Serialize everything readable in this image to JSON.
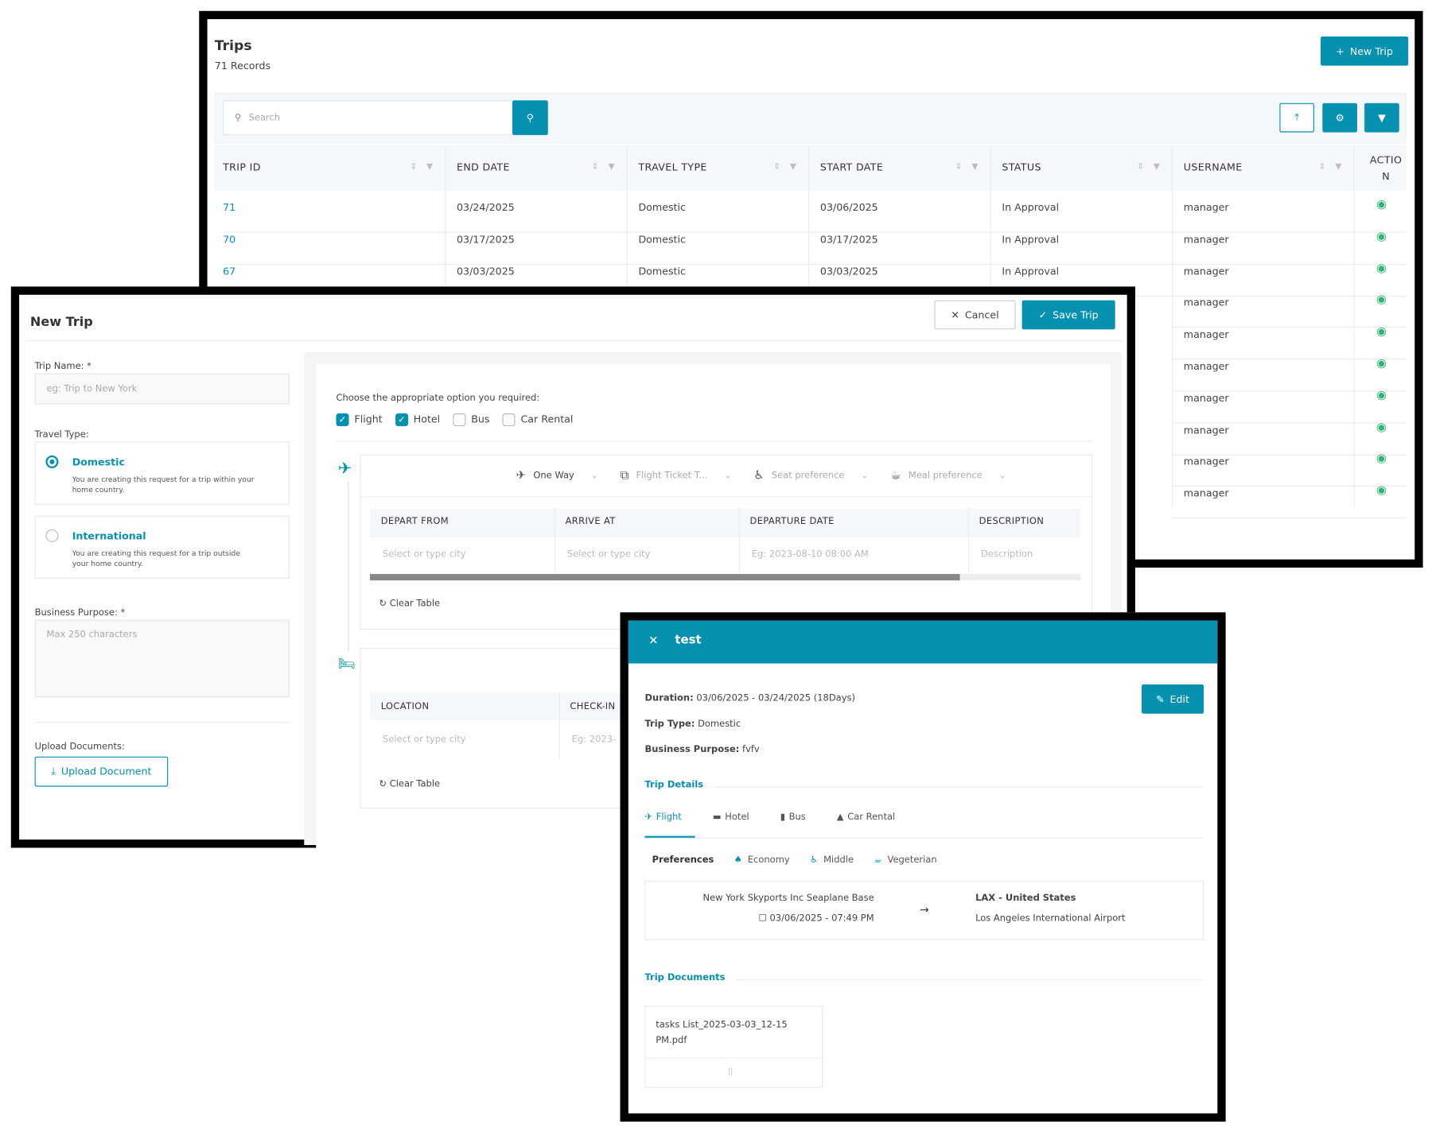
{
  "trips": {
    "title": "Trips",
    "records": "71 Records",
    "new_trip": "New Trip",
    "search_placeholder": "Search",
    "columns": [
      "TRIP ID",
      "END DATE",
      "TRAVEL TYPE",
      "START DATE",
      "STATUS",
      "USERNAME",
      "ACTIO N"
    ],
    "rows": [
      {
        "id": "71",
        "end": "03/24/2025",
        "type": "Domestic",
        "start": "03/06/2025",
        "status": "In Approval",
        "user": "manager"
      },
      {
        "id": "70",
        "end": "03/17/2025",
        "type": "Domestic",
        "start": "03/17/2025",
        "status": "In Approval",
        "user": "manager"
      },
      {
        "id": "67",
        "end": "03/03/2025",
        "type": "Domestic",
        "start": "03/03/2025",
        "status": "In Approval",
        "user": "manager"
      },
      {
        "user": "manager"
      },
      {
        "user": "manager"
      },
      {
        "user": "manager"
      },
      {
        "user": "manager"
      },
      {
        "user": "manager"
      },
      {
        "user": "manager"
      },
      {
        "user": "manager"
      }
    ]
  },
  "new_trip": {
    "title": "New Trip",
    "cancel": "Cancel",
    "save": "Save Trip",
    "trip_name_label": "Trip Name: *",
    "trip_name_placeholder": "eg: Trip to New York",
    "travel_type_label": "Travel Type:",
    "domestic": {
      "title": "Domestic",
      "desc": "You are creating this request for a trip within your home country."
    },
    "international": {
      "title": "International",
      "desc": "You are creating this request for a trip outside your home country."
    },
    "purpose_label": "Business Purpose: *",
    "purpose_placeholder": "Max 250 characters",
    "upload_label": "Upload Documents:",
    "upload_button": "Upload Document",
    "choose_label": "Choose the appropriate option you required:",
    "options": [
      {
        "label": "Flight",
        "checked": true
      },
      {
        "label": "Hotel",
        "checked": true
      },
      {
        "label": "Bus",
        "checked": false
      },
      {
        "label": "Car Rental",
        "checked": false
      }
    ],
    "flight_prefs": [
      "One Way",
      "Flight Ticket T...",
      "Seat preference",
      "Meal preference"
    ],
    "flight_cols": [
      "DEPART FROM",
      "ARRIVE AT",
      "DEPARTURE DATE",
      "DESCRIPTION"
    ],
    "flight_placeholders": [
      "Select or type city",
      "Select or type city",
      "Eg: 2023-08-10 08:00 AM",
      "Description"
    ],
    "clear_table": "Clear Table",
    "hotel_cols": [
      "LOCATION",
      "CHECK-IN"
    ],
    "hotel_placeholders": [
      "Select or type city",
      "Eg: 2023-"
    ]
  },
  "detail": {
    "title": "test",
    "edit": "Edit",
    "duration_label": "Duration:",
    "duration": "03/06/2025 - 03/24/2025 (18Days)",
    "type_label": "Trip Type:",
    "type": "Domestic",
    "purpose_label": "Business Purpose:",
    "purpose": "fvfv",
    "trip_details": "Trip Details",
    "tabs": [
      "Flight",
      "Hotel",
      "Bus",
      "Car Rental"
    ],
    "preferences_label": "Preferences",
    "preferences": [
      "Economy",
      "Middle",
      "Vegeterian"
    ],
    "from": "New York Skyports Inc Seaplane Base",
    "from_date": "03/06/2025 - 07:49 PM",
    "to_code": "LAX - United States",
    "to_name": "Los Angeles International Airport",
    "docs_label": "Trip Documents",
    "doc_name": "tasks List_2025-03-03_12-15 PM.pdf"
  },
  "colors": {
    "accent": "#0791b0",
    "eye": "#2bb673"
  }
}
